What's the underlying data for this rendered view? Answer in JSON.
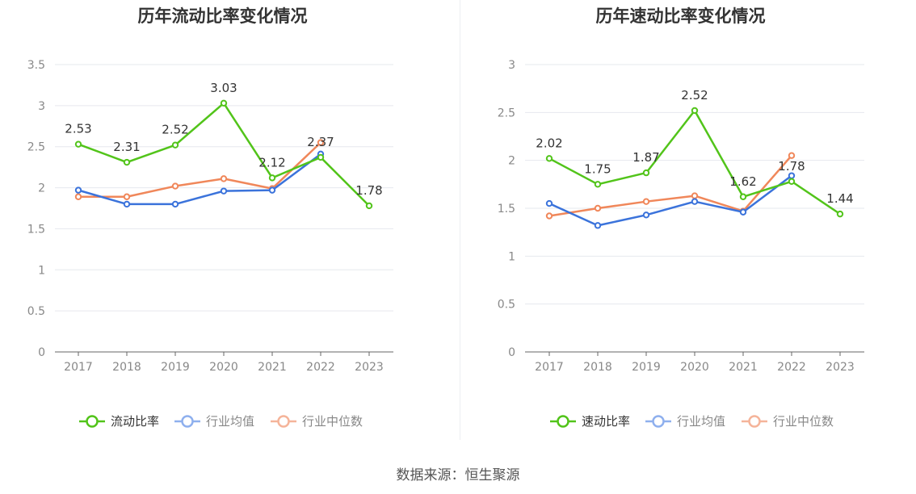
{
  "source_text": "数据来源：恒生聚源",
  "chart_data": [
    {
      "type": "line",
      "title": "历年流动比率变化情况",
      "xlabel": "",
      "ylabel": "",
      "categories": [
        "2017",
        "2018",
        "2019",
        "2020",
        "2021",
        "2022",
        "2023"
      ],
      "ylim": [
        0,
        3.5
      ],
      "yticks": [
        0,
        0.5,
        1,
        1.5,
        2,
        2.5,
        3,
        3.5
      ],
      "ytick_labels": [
        "0",
        "0.5",
        "1",
        "1.5",
        "2",
        "2.5",
        "3",
        "3.5"
      ],
      "grid": true,
      "legend_position": "bottom",
      "series": [
        {
          "name": "流动比率",
          "color": "#52c41a",
          "labeled": true,
          "values": [
            2.53,
            2.31,
            2.52,
            3.03,
            2.12,
            2.37,
            1.78
          ],
          "data_labels": [
            "2.53",
            "2.31",
            "2.52",
            "3.03",
            "2.12",
            "2.37",
            "1.78"
          ]
        },
        {
          "name": "行业均值",
          "color": "#3b73db",
          "labeled": false,
          "values": [
            1.97,
            1.8,
            1.8,
            1.96,
            1.97,
            2.41,
            null
          ]
        },
        {
          "name": "行业中位数",
          "color": "#f0875a",
          "labeled": false,
          "values": [
            1.89,
            1.89,
            2.02,
            2.11,
            1.99,
            2.55,
            null
          ]
        }
      ]
    },
    {
      "type": "line",
      "title": "历年速动比率变化情况",
      "xlabel": "",
      "ylabel": "",
      "categories": [
        "2017",
        "2018",
        "2019",
        "2020",
        "2021",
        "2022",
        "2023"
      ],
      "ylim": [
        0,
        3
      ],
      "yticks": [
        0,
        0.5,
        1,
        1.5,
        2,
        2.5,
        3
      ],
      "ytick_labels": [
        "0",
        "0.5",
        "1",
        "1.5",
        "2",
        "2.5",
        "3"
      ],
      "grid": true,
      "legend_position": "bottom",
      "series": [
        {
          "name": "速动比率",
          "color": "#52c41a",
          "labeled": true,
          "values": [
            2.02,
            1.75,
            1.87,
            2.52,
            1.62,
            1.78,
            1.44
          ],
          "data_labels": [
            "2.02",
            "1.75",
            "1.87",
            "2.52",
            "1.62",
            "1.78",
            "1.44"
          ]
        },
        {
          "name": "行业均值",
          "color": "#3b73db",
          "labeled": false,
          "values": [
            1.55,
            1.32,
            1.43,
            1.57,
            1.46,
            1.84,
            null
          ]
        },
        {
          "name": "行业中位数",
          "color": "#f0875a",
          "labeled": false,
          "values": [
            1.42,
            1.5,
            1.57,
            1.63,
            1.47,
            2.05,
            null
          ]
        }
      ]
    }
  ]
}
